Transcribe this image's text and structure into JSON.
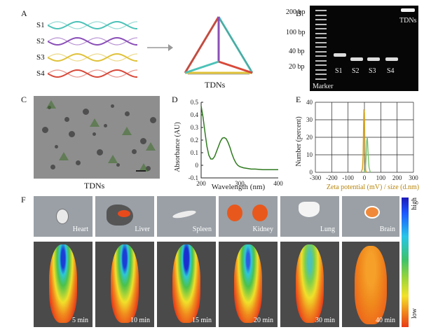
{
  "panels": {
    "a": "A",
    "b": "B",
    "c": "C",
    "d": "D",
    "e": "E",
    "f": "F"
  },
  "panel_a": {
    "strands": [
      "S1",
      "S2",
      "S3",
      "S4"
    ],
    "strand_colors": [
      "#4cc2b8",
      "#8a4fb8",
      "#e0c23a",
      "#d8493a"
    ],
    "product_label": "TDNs"
  },
  "panel_b": {
    "ladder_labels": [
      "200 bp",
      "100 bp",
      "40 bp",
      "20 bp"
    ],
    "lane_labels": [
      "S1",
      "S2",
      "S3",
      "S4"
    ],
    "tdn_label": "TDNs",
    "marker_label": "Marker"
  },
  "panel_c": {
    "caption": "TDNs"
  },
  "chart_data": [
    {
      "type": "line",
      "title": "",
      "xlabel": "Wavelength (nm)",
      "ylabel": "Absorbance (AU)",
      "xlim": [
        200,
        400
      ],
      "ylim": [
        -0.1,
        0.5
      ],
      "xticks": [
        200,
        300,
        400
      ],
      "yticks": [
        -0.1,
        0,
        0.1,
        0.2,
        0.3,
        0.4,
        0.5
      ],
      "series": [
        {
          "color": "#2f7a1f",
          "x": [
            200,
            205,
            210,
            215,
            220,
            225,
            230,
            235,
            240,
            245,
            250,
            255,
            260,
            265,
            270,
            275,
            280,
            285,
            290,
            295,
            300,
            310,
            320,
            330,
            340,
            360,
            380,
            400
          ],
          "y": [
            0.47,
            0.38,
            0.26,
            0.15,
            0.08,
            0.05,
            0.05,
            0.07,
            0.11,
            0.15,
            0.19,
            0.215,
            0.22,
            0.21,
            0.18,
            0.14,
            0.09,
            0.05,
            0.02,
            0.0,
            -0.01,
            -0.02,
            -0.025,
            -0.03,
            -0.03,
            -0.035,
            -0.035,
            -0.035
          ]
        }
      ]
    },
    {
      "type": "line",
      "title": "",
      "xlabel": "Zeta potential (mV) / size (d.nm)",
      "ylabel": "Number (percent)",
      "xlim": [
        -300,
        300
      ],
      "ylim": [
        0,
        40
      ],
      "xticks": [
        -300,
        -200,
        -100,
        0,
        100,
        200,
        300
      ],
      "yticks": [
        0,
        10,
        20,
        30,
        40
      ],
      "grid": true,
      "series": [
        {
          "color": "#d4a017",
          "x": [
            -20,
            -12,
            -8,
            -5,
            -3,
            0,
            2,
            4,
            8,
            12
          ],
          "y": [
            0,
            2,
            10,
            28,
            36,
            34,
            20,
            8,
            1,
            0
          ]
        },
        {
          "color": "#7cc26b",
          "x": [
            0,
            6,
            10,
            14,
            18,
            22,
            28,
            36
          ],
          "y": [
            0,
            2,
            8,
            18,
            20,
            12,
            3,
            0
          ]
        }
      ]
    }
  ],
  "panel_f": {
    "organs": [
      "Heart",
      "Liver",
      "Spleen",
      "Kidney",
      "Lung",
      "Brain"
    ],
    "times": [
      "5 min",
      "10 min",
      "15 min",
      "20 min",
      "30 min",
      "40 min"
    ],
    "scale_high": "high",
    "scale_low": "low"
  }
}
